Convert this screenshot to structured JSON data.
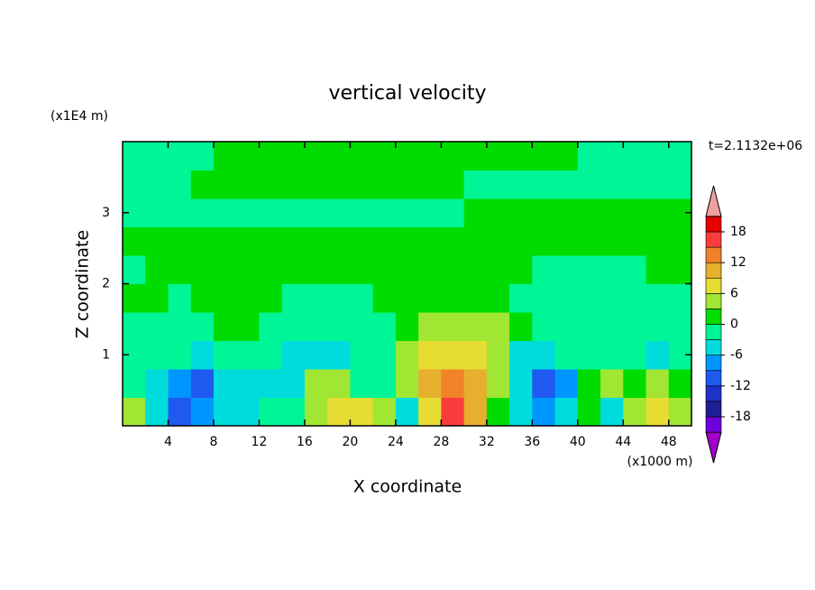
{
  "chart_data": {
    "type": "contour",
    "title": "vertical velocity",
    "subtitle": "t=2.1132e+06",
    "xlabel": "X coordinate",
    "ylabel": "Z coordinate",
    "x_unit": "(x1000 m)",
    "y_unit": "(x1E4 m)",
    "x": [
      1,
      3,
      5,
      7,
      9,
      11,
      13,
      15,
      17,
      19,
      21,
      23,
      25,
      27,
      29,
      31,
      33,
      35,
      37,
      39,
      41,
      43,
      45,
      47,
      49
    ],
    "z": [
      0.2,
      0.6,
      1.0,
      1.4,
      1.8,
      2.2,
      2.6,
      3.0,
      3.4,
      3.8
    ],
    "values": [
      [
        4,
        -4,
        -11,
        -8,
        -4,
        -4,
        -1,
        -1,
        4,
        7,
        7,
        4,
        -4,
        7,
        16,
        10,
        1,
        -4,
        -8,
        -4,
        1,
        -4,
        4,
        7,
        4
      ],
      [
        -1,
        -4,
        -8,
        -11,
        -4,
        -4,
        -4,
        -4,
        4,
        4,
        -1,
        -1,
        4,
        10,
        13,
        10,
        4,
        -4,
        -11,
        -8,
        1,
        4,
        1,
        4,
        1
      ],
      [
        -1,
        -1,
        -1,
        -4,
        -1,
        -1,
        -1,
        -4,
        -4,
        -4,
        -1,
        -1,
        4,
        7,
        7,
        7,
        4,
        -4,
        -4,
        -1,
        -1,
        -1,
        -1,
        -4,
        -1
      ],
      [
        -1,
        -1,
        -1,
        -1,
        1,
        1,
        -1,
        -1,
        -1,
        -1,
        -1,
        -1,
        1,
        4,
        4,
        4,
        4,
        1,
        -1,
        -1,
        -1,
        -1,
        -1,
        -1,
        -1
      ],
      [
        1,
        1,
        -1,
        1,
        1,
        1,
        1,
        -1,
        -1,
        -1,
        -1,
        1,
        1,
        1,
        1,
        1,
        1,
        -1,
        -1,
        -1,
        -1,
        -1,
        -1,
        -1,
        -1
      ],
      [
        -1,
        1,
        1,
        1,
        1,
        1,
        1,
        1,
        1,
        1,
        1,
        1,
        1,
        1,
        1,
        1,
        1,
        1,
        -1,
        -1,
        -1,
        -1,
        -1,
        1,
        1
      ],
      [
        1,
        1,
        1,
        1,
        1,
        1,
        1,
        1,
        1,
        1,
        1,
        1,
        1,
        1,
        1,
        1,
        1,
        1,
        1,
        1,
        1,
        1,
        1,
        1,
        1
      ],
      [
        -1,
        -1,
        -1,
        -1,
        -1,
        -1,
        -1,
        -1,
        -1,
        -1,
        -1,
        -1,
        -1,
        -1,
        -1,
        1,
        1,
        1,
        1,
        1,
        1,
        1,
        1,
        1,
        1
      ],
      [
        -1,
        -1,
        -1,
        1,
        1,
        1,
        1,
        1,
        1,
        1,
        1,
        1,
        1,
        1,
        1,
        -1,
        -1,
        -1,
        -1,
        -1,
        -1,
        -1,
        -1,
        -1,
        -1
      ],
      [
        -1,
        -1,
        -1,
        -1,
        1,
        1,
        1,
        1,
        1,
        1,
        1,
        1,
        1,
        1,
        1,
        1,
        1,
        1,
        1,
        1,
        -1,
        -1,
        -1,
        -1,
        -1
      ]
    ],
    "xlim": [
      0,
      50
    ],
    "ylim": [
      0,
      4
    ],
    "xticks": [
      4,
      8,
      12,
      16,
      20,
      24,
      28,
      32,
      36,
      40,
      44,
      48
    ],
    "yticks": [
      1,
      2,
      3
    ],
    "levels": [
      -21,
      -18,
      -15,
      -12,
      -9,
      -6,
      -3,
      0,
      3,
      6,
      9,
      12,
      15,
      18,
      21
    ],
    "colors": [
      "#a000c8",
      "#6e00dc",
      "#1e1e96",
      "#1e32c8",
      "#1e5af0",
      "#0096ff",
      "#00dcdc",
      "#00f596",
      "#00dc00",
      "#a0e632",
      "#e6dc32",
      "#e6af2d",
      "#f08228",
      "#fa3c3c",
      "#e60000",
      "#f0a0a0"
    ],
    "colorbar_ticks": [
      -18,
      -12,
      -6,
      0,
      6,
      12,
      18
    ]
  }
}
